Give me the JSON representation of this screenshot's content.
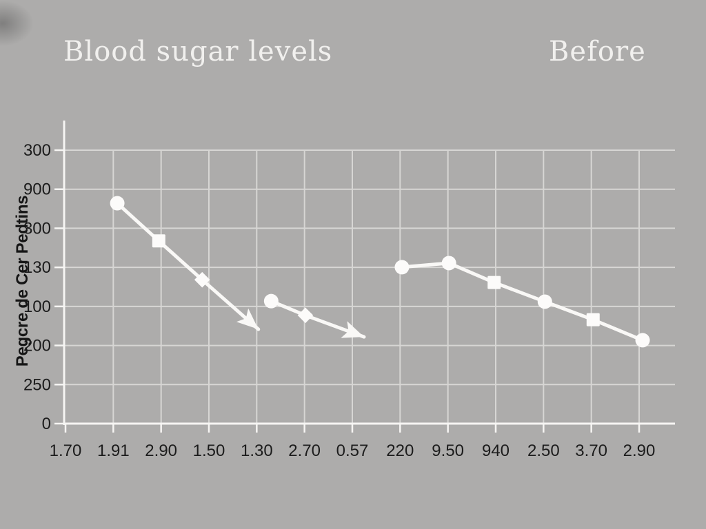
{
  "colors": {
    "background": "#adacab",
    "grid": "#d7d6d4",
    "axis": "#f6f5f3",
    "series": "#f9f8f6",
    "marker": "#fcfbfa",
    "tick_text": "#1c1c1c",
    "title_text": "#f1f0ee",
    "ylabel_text": "#161616"
  },
  "chart_data": {
    "type": "line",
    "title": "Blood sugar levels",
    "annotation": "Before",
    "ylabel": "Pegcre de Cer Pedtins",
    "xlabel": "",
    "grid": true,
    "legend": false,
    "x_tick_labels": [
      "1.70",
      "1.91",
      "2.90",
      "1.50",
      "1.30",
      "2.70",
      "0.57",
      "220",
      "9.50",
      "940",
      "2.50",
      "3.70",
      "2.90"
    ],
    "y_tick_labels_top_to_bottom": [
      "300",
      "900",
      "300",
      "130",
      "100",
      "200",
      "250",
      "0"
    ],
    "encoding": "series points are fractions of the plot box: x 0=left axis to 1=right grid edge, y 0=bottom axis to 1=top gridline; series with arrow_end true have one extra trailing point marking the arrow tip",
    "series": [
      {
        "name": "left-segment",
        "arrow_end": true,
        "markers": [
          "circle",
          "square",
          "diamond"
        ],
        "points": [
          [
            0.087,
            0.806
          ],
          [
            0.155,
            0.668
          ],
          [
            0.226,
            0.526
          ],
          [
            0.318,
            0.345
          ]
        ]
      },
      {
        "name": "middle-segment",
        "arrow_end": true,
        "markers": [
          "circle",
          "diamond"
        ],
        "points": [
          [
            0.339,
            0.448
          ],
          [
            0.395,
            0.396
          ],
          [
            0.491,
            0.317
          ]
        ]
      },
      {
        "name": "right-segment",
        "arrow_end": false,
        "markers": [
          "circle",
          "circle",
          "square",
          "circle",
          "square",
          "circle"
        ],
        "points": [
          [
            0.553,
            0.572
          ],
          [
            0.63,
            0.587
          ],
          [
            0.704,
            0.516
          ],
          [
            0.787,
            0.446
          ],
          [
            0.866,
            0.38
          ],
          [
            0.947,
            0.305
          ]
        ]
      }
    ]
  }
}
